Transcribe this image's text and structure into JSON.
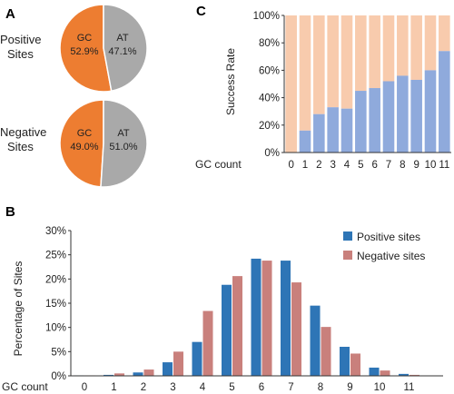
{
  "panels": {
    "a": "A",
    "b": "B",
    "c": "C"
  },
  "colors": {
    "gc": "#ED7D31",
    "at": "#A9A9A9",
    "positive": "#2E75B6",
    "negative": "#C9807C",
    "success": "#8FAADC",
    "remaining": "#F8CBAD"
  },
  "chart_data": [
    {
      "type": "pie",
      "panel": "A",
      "title": "Positive Sites",
      "title_lines": [
        "Positive",
        "Sites"
      ],
      "slices": [
        {
          "name": "GC",
          "value": 52.9,
          "label": "52.9%"
        },
        {
          "name": "AT",
          "value": 47.1,
          "label": "47.1%"
        }
      ]
    },
    {
      "type": "pie",
      "panel": "A",
      "title": "Negative Sites",
      "title_lines": [
        "Negative",
        "Sites"
      ],
      "slices": [
        {
          "name": "GC",
          "value": 49.0,
          "label": "49.0%"
        },
        {
          "name": "AT",
          "value": 51.0,
          "label": "51.0%"
        }
      ]
    },
    {
      "type": "bar",
      "panel": "C",
      "stacked": true,
      "xlabel": "GC count",
      "ylabel": "Success Rate",
      "categories": [
        "0",
        "1",
        "2",
        "3",
        "4",
        "5",
        "6",
        "7",
        "8",
        "9",
        "10",
        "11"
      ],
      "values": [
        0,
        16,
        28,
        33,
        32,
        45,
        47,
        52,
        56,
        53,
        60,
        74
      ],
      "ylim": [
        0,
        100
      ],
      "yticks": [
        "0%",
        "20%",
        "40%",
        "60%",
        "80%",
        "100%"
      ],
      "grid": false,
      "legend": "none"
    },
    {
      "type": "bar",
      "panel": "B",
      "xlabel": "GC count",
      "ylabel": "Percentage of Sites",
      "categories": [
        "0",
        "1",
        "2",
        "3",
        "4",
        "5",
        "6",
        "7",
        "8",
        "9",
        "10",
        "11"
      ],
      "series": [
        {
          "name": "Positive sites",
          "values": [
            0.1,
            0.2,
            0.7,
            2.8,
            7.0,
            18.8,
            24.2,
            23.8,
            14.5,
            6.0,
            1.7,
            0.4
          ]
        },
        {
          "name": "Negative sites",
          "values": [
            0.1,
            0.5,
            1.3,
            5.0,
            13.4,
            20.6,
            23.8,
            19.3,
            10.1,
            4.6,
            1.1,
            0.2
          ]
        }
      ],
      "ylim": [
        0,
        30
      ],
      "yticks": [
        "0%",
        "5%",
        "10%",
        "15%",
        "20%",
        "25%",
        "30%"
      ],
      "grid": false,
      "legend": "top-right"
    }
  ]
}
